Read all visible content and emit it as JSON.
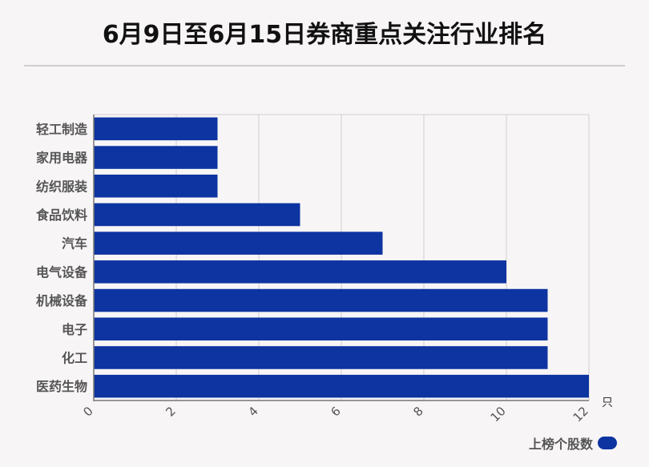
{
  "chart_data": {
    "type": "bar",
    "orientation": "horizontal",
    "title": "6月9日至6月15日券商重点关注行业排名",
    "categories": [
      "轻工制造",
      "家用电器",
      "纺织服装",
      "食品饮料",
      "汽车",
      "电气设备",
      "机械设备",
      "电子",
      "化工",
      "医药生物"
    ],
    "series": [
      {
        "name": "上榜个股数",
        "values": [
          3,
          3,
          3,
          5,
          7,
          10,
          11,
          11,
          11,
          12
        ],
        "color": "#0d34a0"
      }
    ],
    "x_ticks": [
      "0",
      "2",
      "4",
      "6",
      "8",
      "10",
      "12"
    ],
    "xlim": [
      0,
      12
    ],
    "x_unit": "只",
    "grid": true,
    "legend_position": "bottom-right"
  }
}
